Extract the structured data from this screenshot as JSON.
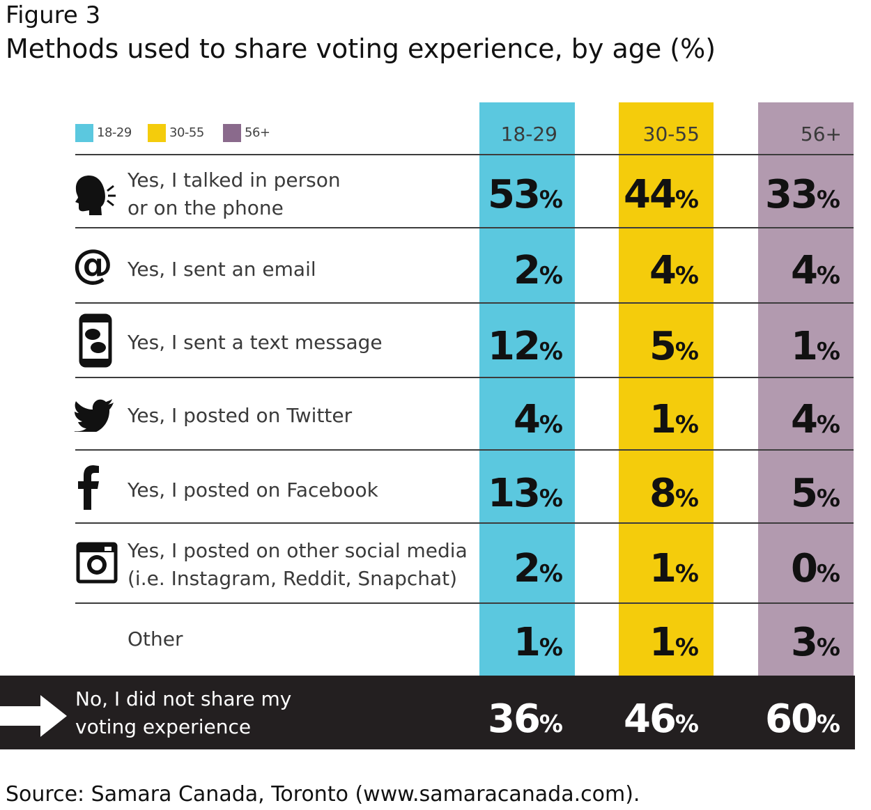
{
  "figure_label": "Figure 3",
  "title": "Methods used to share voting experience, by age (%)",
  "colors": {
    "18-29": "#5bc8df",
    "30-55": "#f4cc0c",
    "56+": "#b29aaf",
    "legend56": "#8a6a8c",
    "bottom": "#231f20"
  },
  "legend": [
    "18-29",
    "30-55",
    "56+"
  ],
  "columns": [
    "18-29",
    "30-55",
    "56+"
  ],
  "rows": [
    {
      "label1": "Yes, I talked in person",
      "label2": "or on the phone",
      "icon": "speaking-head-icon"
    },
    {
      "label1": "Yes, I sent an email",
      "label2": "",
      "icon": "at-sign-icon"
    },
    {
      "label1": "Yes, I sent a text message",
      "label2": "",
      "icon": "phone-message-icon"
    },
    {
      "label1": "Yes, I posted on Twitter",
      "label2": "",
      "icon": "twitter-bird-icon"
    },
    {
      "label1": "Yes, I posted on Facebook",
      "label2": "",
      "icon": "facebook-icon"
    },
    {
      "label1": "Yes, I posted on other social media",
      "label2": "(i.e. Instagram, Reddit, Snapchat)",
      "icon": "instagram-icon"
    },
    {
      "label1": "Other",
      "label2": "",
      "icon": ""
    }
  ],
  "bottom": {
    "label1": "No, I did not share my",
    "label2": "voting experience",
    "icon": "arrow-right-icon"
  },
  "source": "Source: Samara Canada, Toronto (www.samaracanada.com).",
  "chart_data": {
    "type": "table",
    "title": "Methods used to share voting experience, by age (%)",
    "columns": [
      "18-29",
      "30-55",
      "56+"
    ],
    "categories": [
      "Yes, I talked in person or on the phone",
      "Yes, I sent an email",
      "Yes, I sent a text message",
      "Yes, I posted on Twitter",
      "Yes, I posted on Facebook",
      "Yes, I posted on other social media (i.e. Instagram, Reddit, Snapchat)",
      "Other",
      "No, I did not share my voting experience"
    ],
    "series": [
      {
        "name": "18-29",
        "values": [
          53,
          2,
          12,
          4,
          13,
          2,
          1,
          36
        ]
      },
      {
        "name": "30-55",
        "values": [
          44,
          4,
          5,
          1,
          8,
          1,
          1,
          46
        ]
      },
      {
        "name": "56+",
        "values": [
          33,
          4,
          1,
          4,
          5,
          0,
          3,
          60
        ]
      }
    ],
    "unit": "%"
  }
}
